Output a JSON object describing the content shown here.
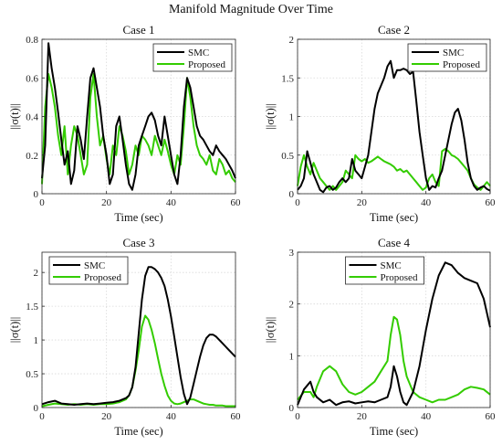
{
  "suptitle": "Manifold Magnitude Over Time",
  "colors": {
    "SMC": "#000000",
    "Proposed": "#33cc00"
  },
  "chart_data": [
    {
      "type": "line",
      "title": "Case 1",
      "xlabel": "Time (sec)",
      "ylabel": "||σ(t)||",
      "xlim": [
        0,
        60
      ],
      "ylim": [
        0,
        0.8
      ],
      "xticks": [
        0,
        20,
        40,
        60
      ],
      "yticks": [
        0,
        0.2,
        0.4,
        0.6,
        0.8
      ],
      "grid": true,
      "legend": "top-right",
      "x": [
        0,
        1,
        2,
        3,
        4,
        5,
        6,
        7,
        8,
        9,
        10,
        11,
        12,
        13,
        14,
        15,
        16,
        17,
        18,
        19,
        20,
        21,
        22,
        23,
        24,
        25,
        26,
        27,
        28,
        29,
        30,
        31,
        32,
        33,
        34,
        35,
        36,
        37,
        38,
        39,
        40,
        41,
        42,
        43,
        44,
        45,
        46,
        47,
        48,
        49,
        50,
        51,
        52,
        53,
        54,
        55,
        56,
        57,
        58,
        59,
        60
      ],
      "series": [
        {
          "name": "SMC",
          "values": [
            0.08,
            0.25,
            0.78,
            0.65,
            0.55,
            0.42,
            0.28,
            0.15,
            0.22,
            0.05,
            0.12,
            0.35,
            0.28,
            0.18,
            0.4,
            0.6,
            0.65,
            0.55,
            0.45,
            0.3,
            0.2,
            0.05,
            0.1,
            0.35,
            0.4,
            0.28,
            0.15,
            0.05,
            0.02,
            0.1,
            0.25,
            0.3,
            0.35,
            0.4,
            0.42,
            0.38,
            0.3,
            0.25,
            0.4,
            0.3,
            0.2,
            0.1,
            0.05,
            0.2,
            0.45,
            0.6,
            0.55,
            0.45,
            0.35,
            0.3,
            0.28,
            0.25,
            0.22,
            0.2,
            0.25,
            0.22,
            0.2,
            0.18,
            0.15,
            0.12,
            0.08
          ]
        },
        {
          "name": "Proposed",
          "values": [
            0.05,
            0.45,
            0.62,
            0.55,
            0.45,
            0.3,
            0.2,
            0.35,
            0.1,
            0.25,
            0.35,
            0.3,
            0.2,
            0.1,
            0.15,
            0.5,
            0.62,
            0.4,
            0.25,
            0.3,
            0.18,
            0.1,
            0.25,
            0.2,
            0.35,
            0.3,
            0.22,
            0.1,
            0.15,
            0.25,
            0.2,
            0.3,
            0.28,
            0.25,
            0.2,
            0.3,
            0.25,
            0.2,
            0.28,
            0.22,
            0.15,
            0.1,
            0.2,
            0.15,
            0.35,
            0.6,
            0.5,
            0.35,
            0.25,
            0.2,
            0.18,
            0.15,
            0.2,
            0.12,
            0.1,
            0.18,
            0.15,
            0.1,
            0.12,
            0.08,
            0.06
          ]
        }
      ]
    },
    {
      "type": "line",
      "title": "Case 2",
      "xlabel": "Time (sec)",
      "ylabel": "||σ(t)||",
      "xlim": [
        0,
        60
      ],
      "ylim": [
        0,
        2
      ],
      "xticks": [
        0,
        20,
        40,
        60
      ],
      "yticks": [
        0,
        0.5,
        1,
        1.5,
        2
      ],
      "grid": true,
      "legend": "top-right",
      "x": [
        0,
        1,
        2,
        3,
        4,
        5,
        6,
        7,
        8,
        9,
        10,
        11,
        12,
        13,
        14,
        15,
        16,
        17,
        18,
        19,
        20,
        21,
        22,
        23,
        24,
        25,
        26,
        27,
        28,
        29,
        30,
        31,
        32,
        33,
        34,
        35,
        36,
        37,
        38,
        39,
        40,
        41,
        42,
        43,
        44,
        45,
        46,
        47,
        48,
        49,
        50,
        51,
        52,
        53,
        54,
        55,
        56,
        57,
        58,
        59,
        60
      ],
      "series": [
        {
          "name": "SMC",
          "values": [
            0.05,
            0.1,
            0.2,
            0.55,
            0.4,
            0.25,
            0.15,
            0.05,
            0.02,
            0.08,
            0.1,
            0.05,
            0.08,
            0.15,
            0.2,
            0.15,
            0.2,
            0.45,
            0.3,
            0.25,
            0.2,
            0.35,
            0.5,
            0.8,
            1.1,
            1.3,
            1.4,
            1.5,
            1.65,
            1.72,
            1.5,
            1.6,
            1.6,
            1.62,
            1.6,
            1.55,
            1.58,
            1.2,
            0.8,
            0.5,
            0.2,
            0.05,
            0.1,
            0.08,
            0.2,
            0.3,
            0.5,
            0.7,
            0.9,
            1.05,
            1.1,
            0.95,
            0.7,
            0.4,
            0.2,
            0.1,
            0.05,
            0.08,
            0.1,
            0.06,
            0.04
          ]
        },
        {
          "name": "Proposed",
          "values": [
            0.1,
            0.35,
            0.5,
            0.35,
            0.25,
            0.4,
            0.3,
            0.2,
            0.15,
            0.1,
            0.05,
            0.1,
            0.05,
            0.1,
            0.15,
            0.3,
            0.25,
            0.2,
            0.5,
            0.45,
            0.42,
            0.45,
            0.4,
            0.42,
            0.45,
            0.48,
            0.45,
            0.42,
            0.4,
            0.38,
            0.35,
            0.3,
            0.32,
            0.28,
            0.3,
            0.25,
            0.2,
            0.15,
            0.1,
            0.05,
            0.08,
            0.2,
            0.25,
            0.15,
            0.1,
            0.55,
            0.58,
            0.55,
            0.5,
            0.48,
            0.45,
            0.4,
            0.35,
            0.3,
            0.2,
            0.12,
            0.08,
            0.05,
            0.1,
            0.15,
            0.1
          ]
        }
      ]
    },
    {
      "type": "line",
      "title": "Case 3",
      "xlabel": "Time (sec)",
      "ylabel": "||σ(t)||",
      "xlim": [
        0,
        60
      ],
      "ylim": [
        0,
        2.3
      ],
      "xticks": [
        0,
        20,
        40,
        60
      ],
      "yticks": [
        0,
        0.5,
        1,
        1.5,
        2
      ],
      "grid": true,
      "legend": "top-left",
      "x": [
        0,
        2,
        4,
        6,
        8,
        10,
        12,
        14,
        16,
        18,
        20,
        22,
        24,
        26,
        27,
        28,
        29,
        30,
        31,
        32,
        33,
        34,
        35,
        36,
        37,
        38,
        39,
        40,
        41,
        42,
        43,
        44,
        45,
        46,
        47,
        48,
        49,
        50,
        51,
        52,
        53,
        54,
        55,
        56,
        57,
        58,
        59,
        60
      ],
      "series": [
        {
          "name": "SMC",
          "values": [
            0.05,
            0.08,
            0.1,
            0.06,
            0.05,
            0.04,
            0.05,
            0.06,
            0.05,
            0.06,
            0.07,
            0.08,
            0.1,
            0.14,
            0.18,
            0.3,
            0.6,
            1.1,
            1.6,
            1.95,
            2.08,
            2.08,
            2.05,
            2.0,
            1.92,
            1.8,
            1.6,
            1.35,
            1.05,
            0.75,
            0.45,
            0.2,
            0.05,
            0.15,
            0.35,
            0.55,
            0.75,
            0.92,
            1.03,
            1.08,
            1.08,
            1.05,
            1.0,
            0.95,
            0.9,
            0.85,
            0.8,
            0.75
          ]
        },
        {
          "name": "Proposed",
          "values": [
            0.02,
            0.04,
            0.06,
            0.05,
            0.04,
            0.05,
            0.04,
            0.05,
            0.04,
            0.05,
            0.05,
            0.06,
            0.08,
            0.12,
            0.18,
            0.3,
            0.55,
            0.85,
            1.2,
            1.36,
            1.3,
            1.15,
            0.95,
            0.72,
            0.5,
            0.32,
            0.18,
            0.1,
            0.06,
            0.05,
            0.06,
            0.08,
            0.1,
            0.12,
            0.12,
            0.1,
            0.08,
            0.06,
            0.05,
            0.04,
            0.04,
            0.03,
            0.03,
            0.03,
            0.02,
            0.02,
            0.02,
            0.02
          ]
        }
      ]
    },
    {
      "type": "line",
      "title": "Case 4",
      "xlabel": "Time (sec)",
      "ylabel": "||σ(t)||",
      "xlim": [
        0,
        60
      ],
      "ylim": [
        0,
        3
      ],
      "xticks": [
        0,
        20,
        40,
        60
      ],
      "yticks": [
        0,
        1,
        2,
        3
      ],
      "grid": true,
      "legend": "top-center",
      "x": [
        0,
        2,
        4,
        5,
        6,
        8,
        10,
        12,
        14,
        16,
        18,
        20,
        22,
        24,
        26,
        28,
        29,
        30,
        31,
        32,
        33,
        34,
        36,
        38,
        40,
        42,
        44,
        46,
        48,
        50,
        52,
        54,
        56,
        58,
        60
      ],
      "series": [
        {
          "name": "SMC",
          "values": [
            0.05,
            0.35,
            0.5,
            0.3,
            0.2,
            0.1,
            0.15,
            0.05,
            0.1,
            0.12,
            0.08,
            0.1,
            0.12,
            0.1,
            0.15,
            0.2,
            0.4,
            0.8,
            0.6,
            0.3,
            0.1,
            0.05,
            0.3,
            0.8,
            1.5,
            2.1,
            2.55,
            2.8,
            2.75,
            2.6,
            2.5,
            2.45,
            2.4,
            2.1,
            1.55
          ]
        },
        {
          "name": "Proposed",
          "values": [
            0.15,
            0.3,
            0.3,
            0.2,
            0.4,
            0.7,
            0.8,
            0.7,
            0.45,
            0.3,
            0.25,
            0.3,
            0.4,
            0.5,
            0.7,
            0.9,
            1.4,
            1.75,
            1.7,
            1.4,
            0.9,
            0.6,
            0.3,
            0.2,
            0.15,
            0.1,
            0.15,
            0.15,
            0.2,
            0.25,
            0.35,
            0.4,
            0.38,
            0.35,
            0.25
          ]
        }
      ]
    }
  ]
}
